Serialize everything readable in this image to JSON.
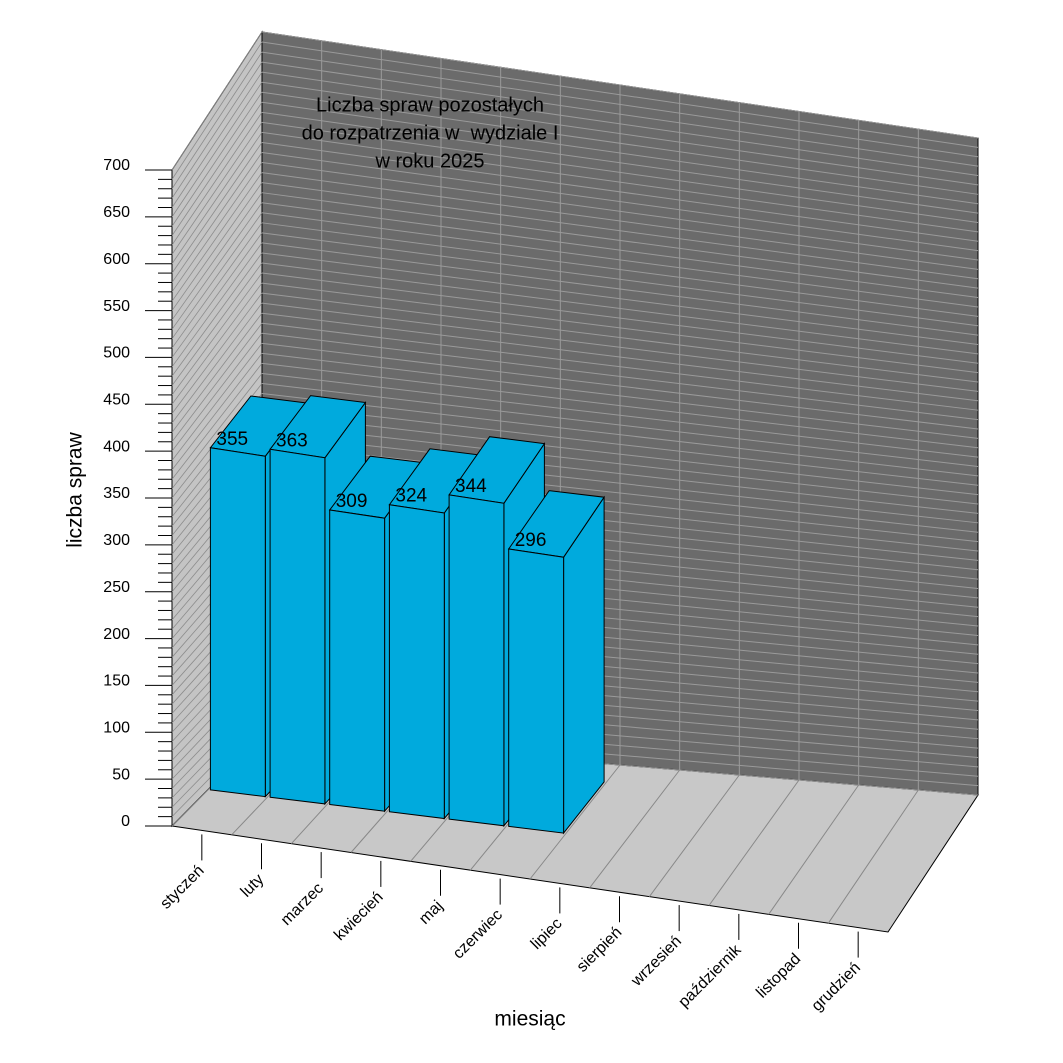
{
  "chart_data": {
    "type": "bar3d",
    "title": [
      "Liczba spraw pozostałych",
      "do rozpatrzenia w  wydziale I",
      "w roku 2025"
    ],
    "x_label": "miesiąc",
    "y_label": "liczba spraw",
    "categories": [
      "styczeń",
      "luty",
      "marzec",
      "kwiecień",
      "maj",
      "czerwiec",
      "lipiec",
      "sierpień",
      "wrzesień",
      "październik",
      "listopad",
      "grudzień"
    ],
    "values": [
      355,
      363,
      309,
      324,
      344,
      296,
      null,
      null,
      null,
      null,
      null,
      null
    ],
    "color": "#00aadd",
    "ylim": [
      0,
      700
    ],
    "yticks": [
      0,
      50,
      100,
      150,
      200,
      250,
      300,
      350,
      400,
      450,
      500,
      550,
      600,
      650,
      700
    ],
    "grid": true
  }
}
